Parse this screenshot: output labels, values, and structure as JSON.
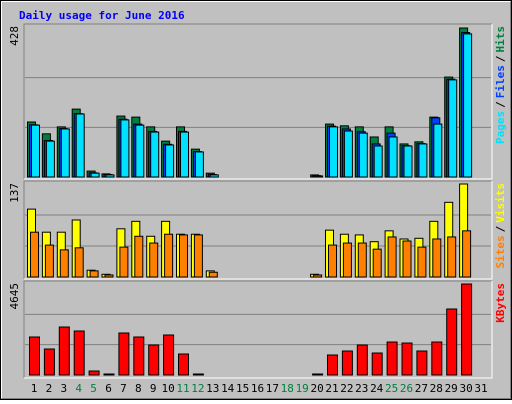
{
  "chart_data": [
    {
      "type": "bar",
      "title": "Daily usage for June 2016",
      "categories": [
        "1",
        "2",
        "3",
        "4",
        "5",
        "6",
        "7",
        "8",
        "9",
        "10",
        "11",
        "12",
        "13",
        "14",
        "15",
        "16",
        "17",
        "18",
        "19",
        "20",
        "21",
        "22",
        "23",
        "24",
        "25",
        "26",
        "27",
        "28",
        "29",
        "30",
        "31"
      ],
      "category_colors": [
        "#000000",
        "#000000",
        "#000000",
        "#008040",
        "#008040",
        "#000000",
        "#000000",
        "#000000",
        "#000000",
        "#000000",
        "#008040",
        "#008040",
        "#000000",
        "#000000",
        "#000000",
        "#000000",
        "#000000",
        "#008040",
        "#008040",
        "#000000",
        "#000000",
        "#000000",
        "#000000",
        "#000000",
        "#008040",
        "#008040",
        "#000000",
        "#000000",
        "#000000",
        "#000000",
        "#000000"
      ],
      "legend_separator": "/",
      "ylim": [
        0,
        428
      ],
      "yticks": [
        428
      ],
      "series": [
        {
          "name": "Hits",
          "color": "#008040",
          "values": [
            158,
            124,
            144,
            195,
            17,
            9,
            175,
            172,
            144,
            103,
            144,
            80,
            11,
            0,
            0,
            0,
            0,
            0,
            0,
            6,
            152,
            147,
            144,
            115,
            144,
            95,
            101,
            172,
            287,
            428,
            0
          ]
        },
        {
          "name": "Files",
          "color": "#0040ff",
          "values": [
            150,
            105,
            139,
            182,
            12,
            7,
            166,
            152,
            131,
            94,
            131,
            73,
            7,
            0,
            0,
            0,
            0,
            0,
            0,
            4,
            146,
            138,
            130,
            95,
            126,
            90,
            96,
            170,
            281,
            415,
            0
          ]
        },
        {
          "name": "Pages",
          "color": "#00e0ff",
          "values": [
            149,
            103,
            138,
            181,
            11,
            6,
            164,
            149,
            129,
            92,
            129,
            72,
            6,
            0,
            0,
            0,
            0,
            0,
            0,
            3,
            144,
            132,
            126,
            89,
            115,
            89,
            95,
            152,
            279,
            411,
            0
          ]
        }
      ]
    },
    {
      "type": "bar",
      "legend_separator": "/",
      "ylim": [
        0,
        137
      ],
      "yticks": [
        137
      ],
      "series": [
        {
          "name": "Visits",
          "color": "#ffff00",
          "values": [
            100,
            66,
            66,
            84,
            10,
            4,
            71,
            82,
            60,
            82,
            63,
            63,
            9,
            0,
            0,
            0,
            0,
            0,
            0,
            4,
            69,
            63,
            62,
            52,
            68,
            56,
            57,
            82,
            110,
            137,
            0
          ]
        },
        {
          "name": "Sites",
          "color": "#ff8000",
          "values": [
            66,
            47,
            40,
            43,
            9,
            3,
            44,
            60,
            50,
            63,
            62,
            62,
            7,
            0,
            0,
            0,
            0,
            0,
            0,
            3,
            47,
            50,
            50,
            41,
            59,
            53,
            44,
            56,
            59,
            68,
            0
          ]
        }
      ]
    },
    {
      "type": "bar",
      "ylim": [
        0,
        4645
      ],
      "yticks": [
        4645
      ],
      "series": [
        {
          "name": "KBytes",
          "color": "#ff0000",
          "values": [
            1940,
            1327,
            2450,
            2246,
            204,
            51,
            2144,
            1940,
            1531,
            2042,
            1072,
            51,
            0,
            0,
            0,
            0,
            0,
            0,
            0,
            51,
            1021,
            1225,
            1531,
            1123,
            1684,
            1633,
            1225,
            1684,
            3369,
            4645,
            0
          ]
        }
      ]
    }
  ]
}
